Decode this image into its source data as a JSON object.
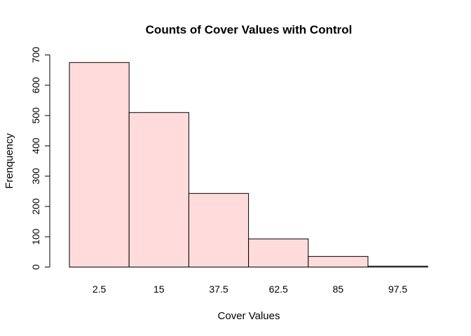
{
  "chart_data": {
    "type": "bar",
    "title": "Counts of Cover Values with Control",
    "xlabel": "Cover Values",
    "ylabel": "Frenquency",
    "categories": [
      "2.5",
      "15",
      "37.5",
      "62.5",
      "85",
      "97.5"
    ],
    "values": [
      675,
      510,
      243,
      93,
      35,
      3
    ],
    "ylim": [
      0,
      700
    ],
    "yticks": [
      "0",
      "100",
      "200",
      "300",
      "400",
      "500",
      "600",
      "700"
    ],
    "bar_color": "#ffdcdb",
    "grid": false,
    "legend": "none"
  }
}
